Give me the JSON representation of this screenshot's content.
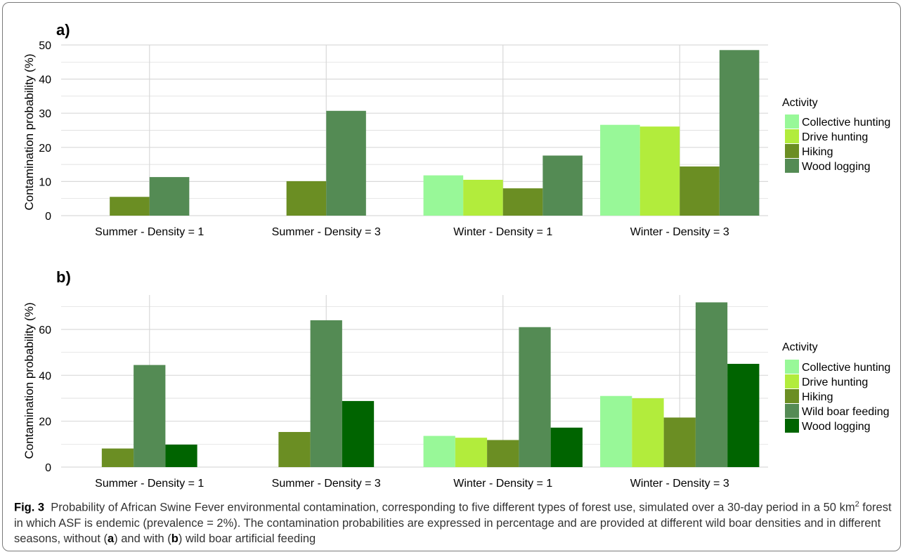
{
  "colors": {
    "Collective hunting": "#98f898",
    "Drive hunting": "#b2ec3c",
    "Hiking": "#6b8e23",
    "Wild boar feeding": "#548b54",
    "Wood logging_a": "#548b54",
    "Wood logging_b": "#006400",
    "grid": "#d9d9d9"
  },
  "chart_data": [
    {
      "type": "bar",
      "panel_label": "a)",
      "ylabel": "Contamination probability (%)",
      "categories": [
        "Summer - Density = 1",
        "Summer - Density = 3",
        "Winter - Density = 1",
        "Winter - Density = 3"
      ],
      "ylim": [
        0,
        50
      ],
      "yticks": [
        0,
        10,
        20,
        30,
        40,
        50
      ],
      "legend_title": "Activity",
      "legend_placement": "right",
      "series": [
        {
          "name": "Collective hunting",
          "color": "#98f898",
          "values": [
            null,
            null,
            11.8,
            26.6
          ]
        },
        {
          "name": "Drive hunting",
          "color": "#b2ec3c",
          "values": [
            null,
            null,
            10.5,
            26.1
          ]
        },
        {
          "name": "Hiking",
          "color": "#6b8e23",
          "values": [
            5.5,
            10.1,
            8.0,
            14.4
          ]
        },
        {
          "name": "Wood logging",
          "color": "#548b54",
          "values": [
            11.3,
            30.7,
            17.6,
            48.5
          ]
        }
      ]
    },
    {
      "type": "bar",
      "panel_label": "b)",
      "ylabel": "Contamination probability (%)",
      "categories": [
        "Summer - Density = 1",
        "Summer - Density = 3",
        "Winter - Density = 1",
        "Winter - Density = 3"
      ],
      "ylim": [
        0,
        75
      ],
      "yticks": [
        0,
        20,
        40,
        60
      ],
      "legend_title": "Activity",
      "legend_placement": "right",
      "series": [
        {
          "name": "Collective hunting",
          "color": "#98f898",
          "values": [
            null,
            null,
            13.6,
            31.0
          ]
        },
        {
          "name": "Drive hunting",
          "color": "#b2ec3c",
          "values": [
            null,
            null,
            12.8,
            30.0
          ]
        },
        {
          "name": "Hiking",
          "color": "#6b8e23",
          "values": [
            8.1,
            15.3,
            11.8,
            21.6
          ]
        },
        {
          "name": "Wild boar feeding",
          "color": "#548b54",
          "values": [
            44.5,
            64.0,
            61.0,
            71.8
          ]
        },
        {
          "name": "Wood logging",
          "color": "#006400",
          "values": [
            9.8,
            28.8,
            17.2,
            45.0
          ]
        }
      ]
    }
  ],
  "caption": {
    "fig_label": "Fig. 3",
    "text_1": "Probability of African Swine Fever environmental contamination, corresponding to five different types of forest use, simulated over a 30-day period in a 50 km",
    "sup": "2",
    "text_2": " forest in which ASF is endemic (prevalence = 2%). The contamination probabilities are expressed in percentage and are provided at different wild boar densities and in different seasons, without (",
    "a": "a",
    "text_3": ") and with (",
    "b": "b",
    "text_4": ") wild boar artificial feeding"
  }
}
